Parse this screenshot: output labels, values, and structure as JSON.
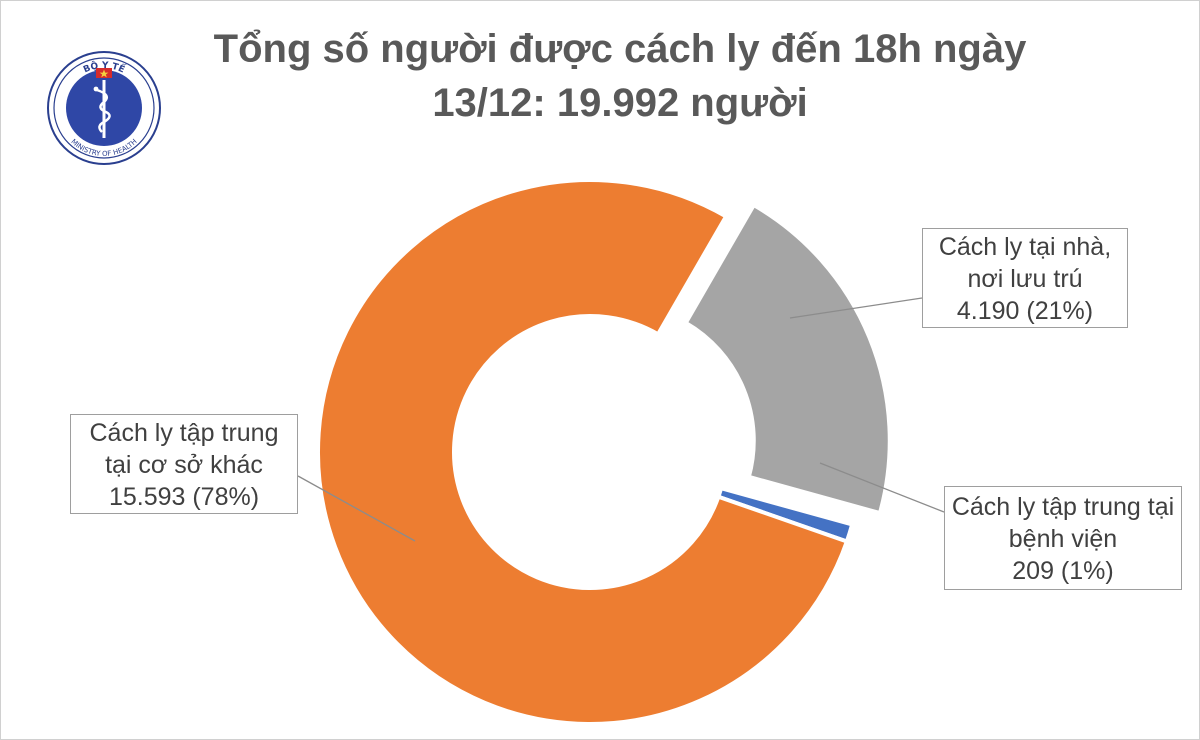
{
  "title_line1": "Tổng số người được cách ly đến 18h ngày",
  "title_line2": "13/12: 19.992 người",
  "logo": {
    "top_text": "BỘ Y TẾ",
    "bottom_text": "MINISTRY OF HEALTH",
    "colors": {
      "ring": "#2a3f8f",
      "inner": "#2f47a6",
      "star": "#f4d03f",
      "red": "#d62b2b"
    }
  },
  "chart_data": {
    "type": "pie",
    "title": "Tổng số người được cách ly đến 18h ngày 13/12: 19.992 người",
    "total": 19992,
    "slices": [
      {
        "label": "Cách ly tại nhà, nơi lưu trú",
        "value": 4190,
        "percent": 21,
        "color": "#a5a5a5",
        "exploded": true
      },
      {
        "label": "Cách ly tập trung tại bệnh viện",
        "value": 209,
        "percent": 1,
        "color": "#4472c4",
        "exploded": false
      },
      {
        "label": "Cách ly tập trung tại cơ sở khác",
        "value": 15593,
        "percent": 78,
        "color": "#ed7d31",
        "exploded": false
      }
    ]
  },
  "labels": {
    "home": {
      "line1": "Cách ly tại nhà,",
      "line2": "nơi lưu trú",
      "line3": "4.190 (21%)"
    },
    "hospital": {
      "line1": "Cách ly tập trung tại",
      "line2": "bệnh viện",
      "line3": "209 (1%)"
    },
    "center": {
      "line1": "Cách ly tập trung",
      "line2": "tại cơ sở khác",
      "line3": "15.593 (78%)"
    }
  }
}
